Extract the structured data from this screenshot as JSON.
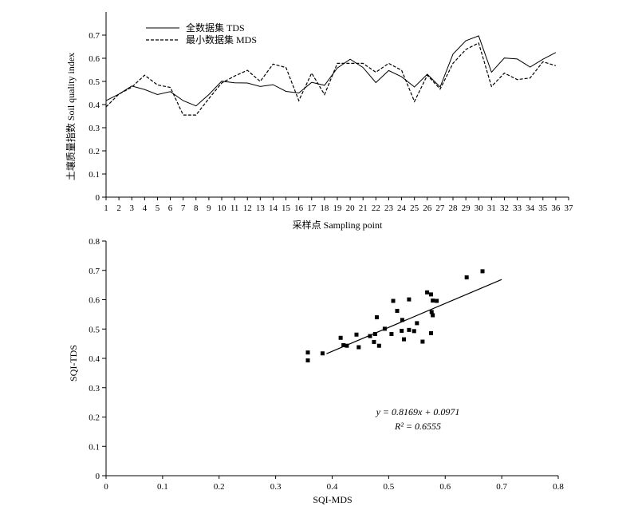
{
  "chart_data": [
    {
      "type": "line",
      "xlabel": "采样点 Sampling point",
      "ylabel": "土壤质量指数 Soil quality index",
      "xlim": [
        1,
        37
      ],
      "ylim": [
        0,
        0.8
      ],
      "x_ticks": [
        "1",
        "2",
        "3",
        "4",
        "5",
        "6",
        "7",
        "8",
        "9",
        "10",
        "11",
        "12",
        "13",
        "14",
        "15",
        "16",
        "17",
        "18",
        "19",
        "20",
        "21",
        "22",
        "23",
        "24",
        "25",
        "26",
        "27",
        "28",
        "29",
        "30",
        "31",
        "32",
        "33",
        "34",
        "35",
        "36",
        "37"
      ],
      "y_ticks": [
        "0",
        "0.1",
        "0.2",
        "0.3",
        "0.4",
        "0.5",
        "0.6",
        "0.7"
      ],
      "legend_position": "top-left",
      "x": [
        1,
        2,
        3,
        4,
        5,
        6,
        7,
        8,
        9,
        10,
        11,
        12,
        13,
        14,
        15,
        16,
        17,
        18,
        19,
        20,
        21,
        22,
        23,
        24,
        25,
        26,
        27,
        28,
        29,
        30,
        31,
        32,
        33,
        34,
        35,
        36
      ],
      "series": [
        {
          "name": "全数据集 TDS",
          "style": "solid",
          "values": [
            0.417,
            0.445,
            0.48,
            0.465,
            0.443,
            0.456,
            0.417,
            0.394,
            0.443,
            0.501,
            0.494,
            0.493,
            0.478,
            0.486,
            0.457,
            0.45,
            0.496,
            0.483,
            0.558,
            0.596,
            0.56,
            0.495,
            0.547,
            0.52,
            0.476,
            0.531,
            0.476,
            0.618,
            0.676,
            0.697,
            0.54,
            0.601,
            0.597,
            0.562,
            0.596,
            0.625
          ]
        },
        {
          "name": "最小数据集 MDS",
          "style": "dashed",
          "values": [
            0.39,
            0.445,
            0.475,
            0.527,
            0.485,
            0.474,
            0.355,
            0.355,
            0.426,
            0.493,
            0.523,
            0.548,
            0.5,
            0.575,
            0.56,
            0.417,
            0.536,
            0.443,
            0.578,
            0.578,
            0.578,
            0.54,
            0.578,
            0.548,
            0.413,
            0.527,
            0.467,
            0.578,
            0.638,
            0.666,
            0.478,
            0.536,
            0.508,
            0.515,
            0.585,
            0.568
          ]
        }
      ]
    },
    {
      "type": "scatter",
      "xlabel": "SQI-MDS",
      "ylabel": "SQI-TDS",
      "xlim": [
        0,
        0.8
      ],
      "ylim": [
        0,
        0.8
      ],
      "x_ticks": [
        "0",
        "0.1",
        "0.2",
        "0.3",
        "0.4",
        "0.5",
        "0.6",
        "0.7",
        "0.8"
      ],
      "y_ticks": [
        "0",
        "0.1",
        "0.2",
        "0.3",
        "0.4",
        "0.5",
        "0.6",
        "0.7",
        "0.8"
      ],
      "points": [
        [
          0.357,
          0.42
        ],
        [
          0.357,
          0.393
        ],
        [
          0.383,
          0.417
        ],
        [
          0.415,
          0.47
        ],
        [
          0.42,
          0.445
        ],
        [
          0.426,
          0.443
        ],
        [
          0.443,
          0.481
        ],
        [
          0.447,
          0.438
        ],
        [
          0.467,
          0.476
        ],
        [
          0.474,
          0.456
        ],
        [
          0.476,
          0.483
        ],
        [
          0.479,
          0.54
        ],
        [
          0.483,
          0.443
        ],
        [
          0.493,
          0.501
        ],
        [
          0.505,
          0.483
        ],
        [
          0.508,
          0.596
        ],
        [
          0.515,
          0.562
        ],
        [
          0.523,
          0.494
        ],
        [
          0.524,
          0.531
        ],
        [
          0.527,
          0.465
        ],
        [
          0.536,
          0.601
        ],
        [
          0.536,
          0.497
        ],
        [
          0.545,
          0.493
        ],
        [
          0.55,
          0.52
        ],
        [
          0.56,
          0.457
        ],
        [
          0.568,
          0.625
        ],
        [
          0.575,
          0.486
        ],
        [
          0.575,
          0.618
        ],
        [
          0.576,
          0.558
        ],
        [
          0.578,
          0.547
        ],
        [
          0.578,
          0.597
        ],
        [
          0.585,
          0.596
        ],
        [
          0.638,
          0.676
        ],
        [
          0.666,
          0.697
        ]
      ],
      "regression": {
        "slope": 0.8169,
        "intercept": 0.0971,
        "x_range": [
          0.39,
          0.7
        ],
        "equation": "y = 0.8169x + 0.0971",
        "r2_label": "R² = 0.6555"
      }
    }
  ]
}
